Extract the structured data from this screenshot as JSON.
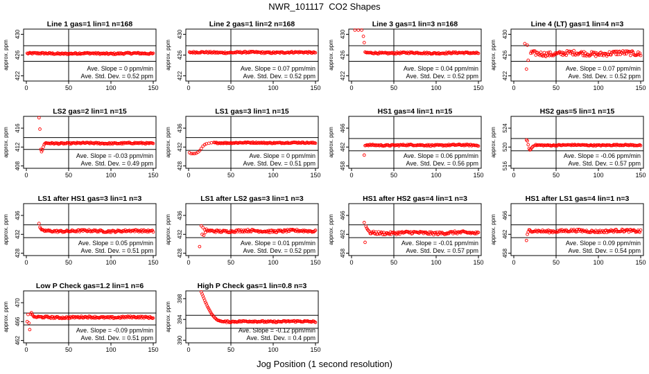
{
  "page": {
    "title": "NWR_101117  CO2 Shapes",
    "x_caption": "Jog Position (1 second resolution)"
  },
  "colors": {
    "points": "#ff0000",
    "lines": "#000000",
    "background": "#ffffff"
  },
  "chart_data": [
    {
      "type": "scatter",
      "title": "Line 1 gas=1 lin=1 n=168",
      "ylabel": "approx. ppm",
      "xlim": [
        0,
        150
      ],
      "ylim": [
        421,
        431
      ],
      "xticks": [
        0,
        50,
        100,
        150
      ],
      "yticks": [
        422,
        426,
        430
      ],
      "ref_hlines": [
        427.8,
        424.8
      ],
      "ref_vline": 50,
      "level": 426.3,
      "start": 1,
      "noise": 0.15,
      "slope_text": "Ave. Slope = 0  ppm/min",
      "std_text": "Ave. Std. Dev. = 0.52  ppm",
      "initial_points": []
    },
    {
      "type": "scatter",
      "title": "Line 2 gas=1 lin=2 n=168",
      "ylabel": "approx. ppm",
      "xlim": [
        0,
        150
      ],
      "ylim": [
        421,
        431
      ],
      "xticks": [
        0,
        50,
        100,
        150
      ],
      "yticks": [
        422,
        426,
        430
      ],
      "ref_hlines": [
        427.8,
        424.8
      ],
      "ref_vline": 50,
      "level": 426.5,
      "start": 1,
      "noise": 0.15,
      "slope_text": "Ave. Slope = 0.07  ppm/min",
      "std_text": "Ave. Std. Dev. = 0.52  ppm",
      "initial_points": []
    },
    {
      "type": "scatter",
      "title": "Line 3 gas=1 lin=3 n=168",
      "ylabel": "approx. ppm",
      "xlim": [
        0,
        150
      ],
      "ylim": [
        421,
        431
      ],
      "xticks": [
        0,
        50,
        100,
        150
      ],
      "yticks": [
        422,
        426,
        430
      ],
      "ref_hlines": [
        427.8,
        424.8
      ],
      "ref_vline": 50,
      "level": 426.4,
      "start": 16,
      "noise": 0.15,
      "slope_text": "Ave. Slope = 0.04  ppm/min",
      "std_text": "Ave. Std. Dev. = 0.52  ppm",
      "initial_points": [
        [
          4,
          430.8
        ],
        [
          8,
          430.8
        ],
        [
          12,
          430.8
        ],
        [
          14,
          429.6
        ],
        [
          15,
          428.4
        ]
      ]
    },
    {
      "type": "scatter",
      "title": "Line 4 (LT) gas=1 lin=4 n=3",
      "ylabel": "approx. ppm",
      "xlim": [
        0,
        150
      ],
      "ylim": [
        421,
        431
      ],
      "xticks": [
        0,
        50,
        100,
        150
      ],
      "yticks": [
        422,
        426,
        430
      ],
      "ref_hlines": [
        427.8,
        424.8
      ],
      "ref_vline": 50,
      "level": 426.3,
      "start": 20,
      "noise": 0.45,
      "slope_text": "Ave. Slope = 0.07  ppm/min",
      "std_text": "Ave. Std. Dev. = 0.52  ppm",
      "initial_points": [
        [
          13,
          428.2
        ],
        [
          15,
          423.3
        ],
        [
          16,
          427.9
        ],
        [
          17,
          425.0
        ]
      ]
    },
    {
      "type": "scatter",
      "title": "LS2 gas=2 lin=1 n=15",
      "ylabel": "approx. ppm",
      "xlim": [
        0,
        150
      ],
      "ylim": [
        407.5,
        418.5
      ],
      "xticks": [
        0,
        50,
        100,
        150
      ],
      "yticks": [
        408,
        412,
        416
      ],
      "ref_hlines": [
        414.0,
        411.5
      ],
      "ref_vline": 50,
      "level": 412.8,
      "start": 22,
      "noise": 0.15,
      "slope_text": "Ave. Slope = -0.03  ppm/min",
      "std_text": "Ave. Std. Dev. = 0.49  ppm",
      "initial_points": [
        [
          15,
          418.2
        ],
        [
          16,
          415.8
        ],
        [
          17,
          411.5
        ],
        [
          18,
          411.0
        ],
        [
          19,
          411.4
        ],
        [
          20,
          412.0
        ],
        [
          21,
          412.5
        ]
      ]
    },
    {
      "type": "scatter",
      "title": "LS1 gas=3 lin=1 n=15",
      "ylabel": "approx. ppm",
      "xlim": [
        0,
        150
      ],
      "ylim": [
        427.5,
        438.5
      ],
      "xticks": [
        0,
        50,
        100,
        150
      ],
      "yticks": [
        428,
        432,
        436
      ],
      "ref_hlines": [
        434.0,
        431.3
      ],
      "ref_vline": 50,
      "level": 432.9,
      "start": 30,
      "noise": 0.12,
      "slope_text": "Ave. Slope = 0  ppm/min",
      "std_text": "Ave. Std. Dev. = 0.51  ppm",
      "initial_points": [
        [
          1,
          430.8
        ],
        [
          3,
          430.6
        ],
        [
          5,
          430.6
        ],
        [
          7,
          430.6
        ],
        [
          9,
          430.7
        ],
        [
          11,
          430.9
        ],
        [
          13,
          431.2
        ],
        [
          15,
          431.7
        ],
        [
          17,
          432.2
        ],
        [
          19,
          432.5
        ],
        [
          21,
          432.7
        ],
        [
          24,
          432.8
        ],
        [
          27,
          432.9
        ]
      ]
    },
    {
      "type": "scatter",
      "title": "HS1 gas=4 lin=1 n=15",
      "ylabel": "approx. ppm",
      "xlim": [
        0,
        150
      ],
      "ylim": [
        457.5,
        468.5
      ],
      "xticks": [
        0,
        50,
        100,
        150
      ],
      "yticks": [
        458,
        462,
        466
      ],
      "ref_hlines": [
        463.8,
        461.2
      ],
      "ref_vline": 50,
      "level": 462.4,
      "start": 17,
      "noise": 0.15,
      "slope_text": "Ave. Slope = 0.06  ppm/min",
      "std_text": "Ave. Std. Dev. = 0.56  ppm",
      "initial_points": [
        [
          15,
          460.3
        ],
        [
          16,
          462.3
        ]
      ]
    },
    {
      "type": "scatter",
      "title": "HS2 gas=5 lin=1 n=15",
      "ylabel": "approx. ppm",
      "xlim": [
        0,
        150
      ],
      "ylim": [
        515.5,
        526.5
      ],
      "xticks": [
        0,
        50,
        100,
        150
      ],
      "yticks": [
        516,
        520,
        524
      ],
      "ref_hlines": [
        521.8,
        519.2
      ],
      "ref_vline": 50,
      "level": 520.4,
      "start": 25,
      "noise": 0.12,
      "slope_text": "Ave. Slope = -0.06  ppm/min",
      "std_text": "Ave. Std. Dev. = 0.57  ppm",
      "initial_points": [
        [
          15,
          521.5
        ],
        [
          16,
          521.3
        ],
        [
          17,
          520.5
        ],
        [
          18,
          519.7
        ],
        [
          19,
          519.4
        ],
        [
          20,
          519.5
        ],
        [
          21,
          519.8
        ],
        [
          22,
          520.0
        ],
        [
          23,
          520.2
        ]
      ]
    },
    {
      "type": "scatter",
      "title": "LS1 after HS1 gas=3 lin=1 n=3",
      "ylabel": "approx. ppm",
      "xlim": [
        0,
        150
      ],
      "ylim": [
        427.5,
        438.5
      ],
      "xticks": [
        0,
        50,
        100,
        150
      ],
      "yticks": [
        428,
        432,
        436
      ],
      "ref_hlines": [
        434.0,
        431.3
      ],
      "ref_vline": 50,
      "level": 432.7,
      "start": 18,
      "noise": 0.22,
      "slope_text": "Ave. Slope = 0.05  ppm/min",
      "std_text": "Ave. Std. Dev. = 0.51  ppm",
      "initial_points": [
        [
          15,
          434.3
        ],
        [
          16,
          433.5
        ],
        [
          17,
          433.2
        ]
      ]
    },
    {
      "type": "scatter",
      "title": "LS1 after LS2 gas=3 lin=1 n=3",
      "ylabel": "approx. ppm",
      "xlim": [
        0,
        150
      ],
      "ylim": [
        427.5,
        438.5
      ],
      "xticks": [
        0,
        50,
        100,
        150
      ],
      "yticks": [
        428,
        432,
        436
      ],
      "ref_hlines": [
        434.0,
        431.3
      ],
      "ref_vline": 50,
      "level": 432.7,
      "start": 22,
      "noise": 0.25,
      "slope_text": "Ave. Slope = 0.01  ppm/min",
      "std_text": "Ave. Std. Dev. = 0.52  ppm",
      "initial_points": [
        [
          13,
          429.4
        ],
        [
          15,
          433.8
        ],
        [
          16,
          432.0
        ],
        [
          17,
          433.4
        ],
        [
          18,
          431.8
        ],
        [
          19,
          433.0
        ],
        [
          20,
          432.4
        ],
        [
          21,
          433.1
        ]
      ]
    },
    {
      "type": "scatter",
      "title": "HS1 after HS2 gas=4 lin=1 n=3",
      "ylabel": "approx. ppm",
      "xlim": [
        0,
        150
      ],
      "ylim": [
        457.5,
        468.5
      ],
      "xticks": [
        0,
        50,
        100,
        150
      ],
      "yticks": [
        458,
        462,
        466
      ],
      "ref_hlines": [
        464.0,
        461.3
      ],
      "ref_vline": 50,
      "level": 462.3,
      "start": 22,
      "noise": 0.3,
      "slope_text": "Ave. Slope = -0.01  ppm/min",
      "std_text": "Ave. Std. Dev. = 0.57  ppm",
      "initial_points": [
        [
          15,
          464.5
        ],
        [
          16,
          460.3
        ],
        [
          17,
          463.7
        ],
        [
          18,
          463.3
        ],
        [
          19,
          463.0
        ],
        [
          20,
          462.8
        ],
        [
          21,
          462.6
        ]
      ]
    },
    {
      "type": "scatter",
      "title": "HS1 after LS1 gas=4 lin=1 n=3",
      "ylabel": "approx. ppm",
      "xlim": [
        0,
        150
      ],
      "ylim": [
        457.5,
        468.5
      ],
      "xticks": [
        0,
        50,
        100,
        150
      ],
      "yticks": [
        458,
        462,
        466
      ],
      "ref_hlines": [
        464.0,
        461.3
      ],
      "ref_vline": 50,
      "level": 462.7,
      "start": 18,
      "noise": 0.28,
      "slope_text": "Ave. Slope = 0.09  ppm/min",
      "std_text": "Ave. Std. Dev. = 0.54  ppm",
      "initial_points": [
        [
          15,
          460.7
        ],
        [
          16,
          462.0
        ],
        [
          17,
          462.5
        ]
      ]
    },
    {
      "type": "scatter",
      "title": "Low P Check gas=1.2 lin=1 n=6",
      "ylabel": "approx. ppm",
      "xlim": [
        0,
        150
      ],
      "ylim": [
        461.5,
        472.5
      ],
      "xticks": [
        0,
        50,
        100,
        150
      ],
      "yticks": [
        462,
        466,
        470
      ],
      "ref_hlines": [
        467.8,
        465.3
      ],
      "ref_vline": 50,
      "level": 466.9,
      "start": 10,
      "noise": 0.2,
      "slope_text": "Ave. Slope = -0.09  ppm/min",
      "std_text": "Ave. Std. Dev. = 0.51  ppm",
      "initial_points": [
        [
          1,
          466.0
        ],
        [
          2,
          467.5
        ],
        [
          3,
          465.7
        ],
        [
          4,
          464.3
        ],
        [
          5,
          467.6
        ],
        [
          6,
          467.9
        ],
        [
          7,
          467.5
        ],
        [
          8,
          467.2
        ],
        [
          9,
          467.0
        ]
      ]
    },
    {
      "type": "scatter",
      "title": "High P Check gas=1 lin=0.8 n=3",
      "ylabel": "approx. ppm",
      "xlim": [
        0,
        150
      ],
      "ylim": [
        389.5,
        399.5
      ],
      "xticks": [
        0,
        50,
        100,
        150
      ],
      "yticks": [
        390,
        394,
        398
      ],
      "ref_hlines": [
        394.8,
        392.3
      ],
      "ref_vline": 50,
      "level": 393.6,
      "start": 40,
      "noise": 0.15,
      "slope_text": "Ave. Slope = -0.12  ppm/min",
      "std_text": "Ave. Std. Dev. = 0.4  ppm",
      "initial_points": [
        [
          15,
          399.3
        ],
        [
          16,
          398.9
        ],
        [
          17,
          398.5
        ],
        [
          18,
          398.1
        ],
        [
          19,
          397.7
        ],
        [
          20,
          397.3
        ],
        [
          21,
          397.0
        ],
        [
          22,
          396.6
        ],
        [
          23,
          396.3
        ],
        [
          24,
          396.0
        ],
        [
          25,
          395.7
        ],
        [
          26,
          395.4
        ],
        [
          27,
          395.1
        ],
        [
          28,
          394.9
        ],
        [
          29,
          394.7
        ],
        [
          30,
          394.5
        ],
        [
          31,
          394.3
        ],
        [
          32,
          394.2
        ],
        [
          33,
          394.0
        ],
        [
          34,
          393.9
        ],
        [
          35,
          393.8
        ],
        [
          36,
          393.8
        ],
        [
          37,
          393.7
        ],
        [
          38,
          393.7
        ],
        [
          39,
          393.6
        ]
      ]
    }
  ]
}
